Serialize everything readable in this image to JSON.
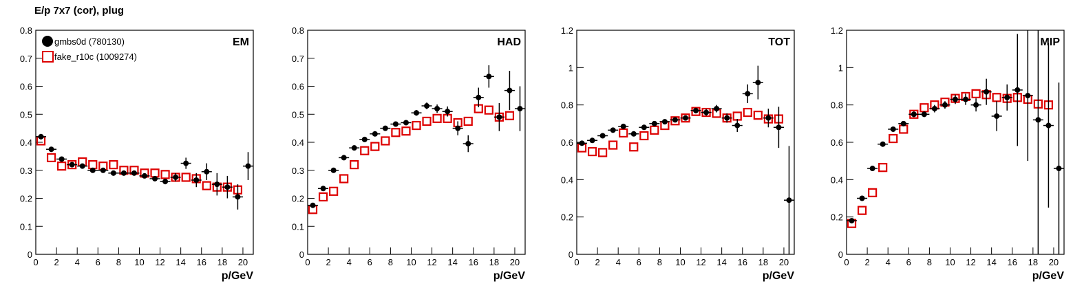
{
  "chart_data": [
    {
      "type": "scatter",
      "title": "E/p 7x7 (cor), plug",
      "label": "EM",
      "xlabel": "p/GeV",
      "x": [
        0.5,
        1.5,
        2.5,
        3.5,
        4.5,
        5.5,
        6.5,
        7.5,
        8.5,
        9.5,
        10.5,
        11.5,
        12.5,
        13.5,
        14.5,
        15.5,
        16.5,
        17.5,
        18.5,
        19.5,
        20.5
      ],
      "xlim": [
        0,
        21
      ],
      "xticks": [
        0,
        2,
        4,
        6,
        8,
        10,
        12,
        14,
        16,
        18,
        20
      ],
      "ylim": [
        0,
        0.8
      ],
      "yticks": [
        0,
        0.1,
        0.2,
        0.3,
        0.4,
        0.5,
        0.6,
        0.7,
        0.8
      ],
      "series": [
        {
          "name": "gmbs0d (780130)",
          "color": "#000000",
          "marker": "circle",
          "values": [
            0.42,
            0.375,
            0.34,
            0.32,
            0.315,
            0.3,
            0.3,
            0.29,
            0.29,
            0.29,
            0.28,
            0.27,
            0.26,
            0.275,
            0.325,
            0.265,
            0.295,
            0.25,
            0.24,
            0.205,
            0.315
          ],
          "errors": [
            0.01,
            0.008,
            0.006,
            0.005,
            0.005,
            0.005,
            0.005,
            0.005,
            0.006,
            0.006,
            0.008,
            0.009,
            0.01,
            0.015,
            0.02,
            0.025,
            0.03,
            0.04,
            0.04,
            0.045,
            0.05
          ]
        },
        {
          "name": "fake_r10c (1009274)",
          "color": "#dd0000",
          "marker": "square",
          "values": [
            0.405,
            0.345,
            0.315,
            0.32,
            0.33,
            0.32,
            0.315,
            0.32,
            0.3,
            0.3,
            0.29,
            0.29,
            0.285,
            0.275,
            0.275,
            0.27,
            0.245,
            0.24,
            0.24,
            0.23,
            null
          ]
        }
      ]
    },
    {
      "type": "scatter",
      "label": "HAD",
      "xlabel": "p/GeV",
      "x": [
        0.5,
        1.5,
        2.5,
        3.5,
        4.5,
        5.5,
        6.5,
        7.5,
        8.5,
        9.5,
        10.5,
        11.5,
        12.5,
        13.5,
        14.5,
        15.5,
        16.5,
        17.5,
        18.5,
        19.5,
        20.5
      ],
      "xlim": [
        0,
        21
      ],
      "xticks": [
        0,
        2,
        4,
        6,
        8,
        10,
        12,
        14,
        16,
        18,
        20
      ],
      "ylim": [
        0,
        0.8
      ],
      "yticks": [
        0,
        0.1,
        0.2,
        0.3,
        0.4,
        0.5,
        0.6,
        0.7,
        0.8
      ],
      "series": [
        {
          "color": "#000000",
          "marker": "circle",
          "values": [
            0.175,
            0.235,
            0.3,
            0.345,
            0.38,
            0.41,
            0.43,
            0.45,
            0.465,
            0.47,
            0.505,
            0.53,
            0.52,
            0.51,
            0.45,
            0.395,
            0.56,
            0.635,
            0.49,
            0.585,
            0.52
          ],
          "errors": [
            0.005,
            0.005,
            0.005,
            0.005,
            0.005,
            0.005,
            0.005,
            0.006,
            0.006,
            0.007,
            0.01,
            0.012,
            0.015,
            0.018,
            0.025,
            0.03,
            0.035,
            0.04,
            0.05,
            0.07,
            0.08
          ]
        },
        {
          "color": "#dd0000",
          "marker": "square",
          "values": [
            0.16,
            0.205,
            0.225,
            0.27,
            0.32,
            0.37,
            0.385,
            0.405,
            0.435,
            0.44,
            0.46,
            0.475,
            0.485,
            0.485,
            0.47,
            0.475,
            0.52,
            0.515,
            0.49,
            0.495,
            null
          ]
        }
      ]
    },
    {
      "type": "scatter",
      "label": "TOT",
      "xlabel": "p/GeV",
      "x": [
        0.5,
        1.5,
        2.5,
        3.5,
        4.5,
        5.5,
        6.5,
        7.5,
        8.5,
        9.5,
        10.5,
        11.5,
        12.5,
        13.5,
        14.5,
        15.5,
        16.5,
        17.5,
        18.5,
        19.5,
        20.5
      ],
      "xlim": [
        0,
        21
      ],
      "xticks": [
        0,
        2,
        4,
        6,
        8,
        10,
        12,
        14,
        16,
        18,
        20
      ],
      "ylim": [
        0,
        1.2
      ],
      "yticks": [
        0,
        0.2,
        0.4,
        0.6,
        0.8,
        1,
        1.2
      ],
      "series": [
        {
          "color": "#000000",
          "marker": "circle",
          "values": [
            0.595,
            0.61,
            0.635,
            0.665,
            0.685,
            0.645,
            0.68,
            0.7,
            0.71,
            0.72,
            0.73,
            0.77,
            0.76,
            0.78,
            0.73,
            0.69,
            0.86,
            0.92,
            0.73,
            0.68,
            0.29
          ],
          "errors": [
            0.01,
            0.008,
            0.008,
            0.008,
            0.008,
            0.008,
            0.008,
            0.008,
            0.01,
            0.01,
            0.012,
            0.015,
            0.018,
            0.02,
            0.025,
            0.035,
            0.05,
            0.09,
            0.05,
            0.11,
            0.29
          ]
        },
        {
          "color": "#dd0000",
          "marker": "square",
          "values": [
            0.57,
            0.55,
            0.545,
            0.585,
            0.65,
            0.575,
            0.635,
            0.665,
            0.69,
            0.715,
            0.73,
            0.765,
            0.76,
            0.755,
            0.73,
            0.74,
            0.76,
            0.745,
            0.725,
            0.725,
            null
          ]
        }
      ]
    },
    {
      "type": "scatter",
      "label": "MIP",
      "xlabel": "p/GeV",
      "x": [
        0.5,
        1.5,
        2.5,
        3.5,
        4.5,
        5.5,
        6.5,
        7.5,
        8.5,
        9.5,
        10.5,
        11.5,
        12.5,
        13.5,
        14.5,
        15.5,
        16.5,
        17.5,
        18.5,
        19.5,
        20.5
      ],
      "xlim": [
        0,
        21
      ],
      "xticks": [
        0,
        2,
        4,
        6,
        8,
        10,
        12,
        14,
        16,
        18,
        20
      ],
      "ylim": [
        0,
        1.2
      ],
      "yticks": [
        0,
        0.2,
        0.4,
        0.6,
        0.8,
        1,
        1.2
      ],
      "series": [
        {
          "color": "#000000",
          "marker": "circle",
          "values": [
            0.18,
            0.3,
            0.46,
            0.59,
            0.67,
            0.7,
            0.75,
            0.75,
            0.78,
            0.8,
            0.83,
            0.83,
            0.8,
            0.87,
            0.74,
            0.84,
            0.88,
            0.85,
            0.72,
            0.69,
            0.46
          ],
          "errors": [
            0.008,
            0.008,
            0.01,
            0.01,
            0.012,
            0.012,
            0.015,
            0.015,
            0.02,
            0.02,
            0.025,
            0.03,
            0.035,
            0.07,
            0.08,
            0.07,
            0.3,
            0.35,
            0.72,
            0.44,
            0.46
          ]
        },
        {
          "color": "#dd0000",
          "marker": "square",
          "values": [
            0.165,
            0.235,
            0.33,
            0.465,
            0.62,
            0.67,
            0.75,
            0.785,
            0.8,
            0.815,
            0.835,
            0.845,
            0.86,
            0.855,
            0.84,
            0.835,
            0.84,
            0.83,
            0.805,
            0.8,
            null
          ]
        }
      ]
    }
  ]
}
